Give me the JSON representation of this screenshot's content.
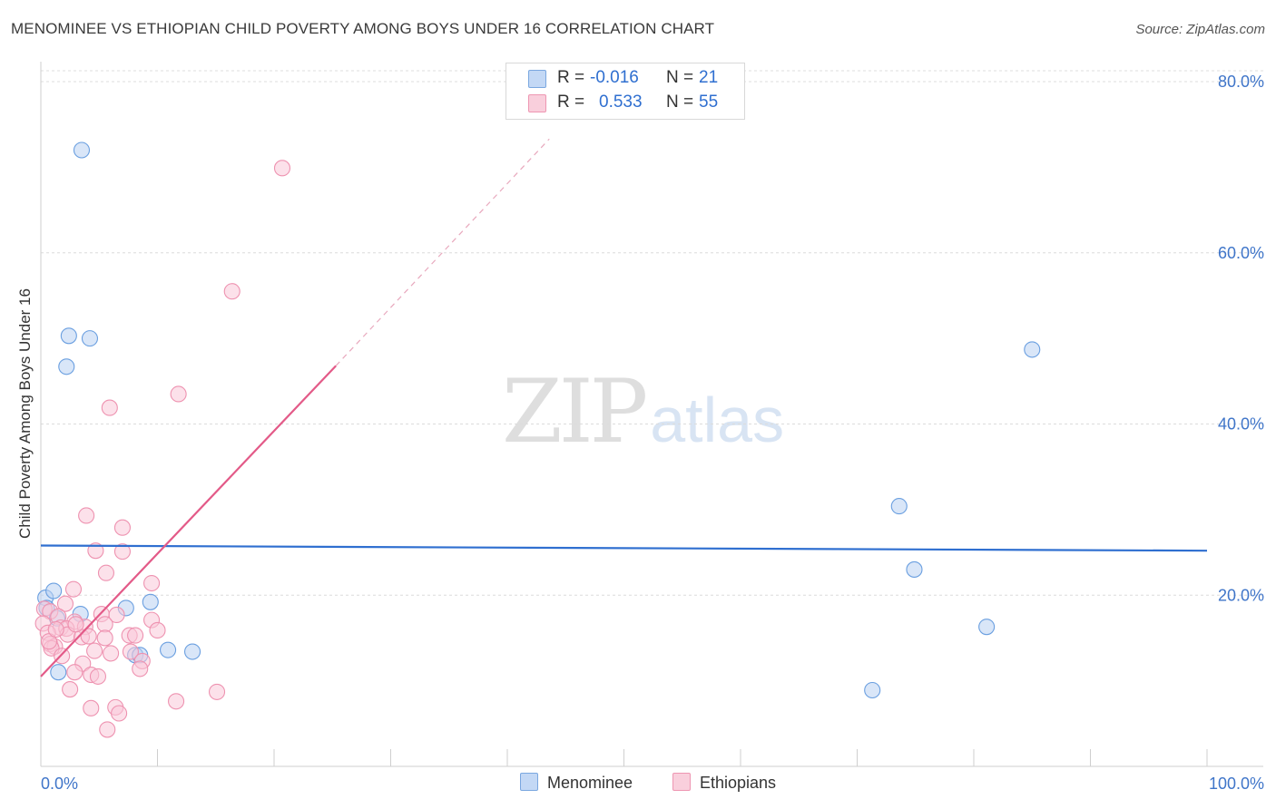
{
  "title": "MENOMINEE VS ETHIOPIAN CHILD POVERTY AMONG BOYS UNDER 16 CORRELATION CHART",
  "source": "Source: ZipAtlas.com",
  "watermark": {
    "zip": "ZIP",
    "atlas": "atlas"
  },
  "legend": {
    "rows": [
      {
        "r_label": "R =",
        "r_value": "-0.016",
        "n_label": "N =",
        "n_value": "21",
        "color": "#aac9f2",
        "border": "#7aa7e0"
      },
      {
        "r_label": "R =",
        "r_value": "0.533",
        "n_label": "N =",
        "n_value": "55",
        "color": "#f7c0d1",
        "border": "#ee96b2"
      }
    ]
  },
  "bottom_legend": {
    "menominee": "Menominee",
    "ethiopians": "Ethiopians"
  },
  "chart_data": {
    "type": "scatter",
    "title": "MENOMINEE VS ETHIOPIAN CHILD POVERTY AMONG BOYS UNDER 16 CORRELATION CHART",
    "xlabel": "",
    "ylabel": "Child Poverty Among Boys Under 16",
    "xlim": [
      0,
      100
    ],
    "ylim": [
      0,
      80
    ],
    "x_tick_labels": [
      "0.0%",
      "100.0%"
    ],
    "y_ticks": [
      20,
      40,
      60,
      80
    ],
    "y_tick_labels": [
      "20.0%",
      "40.0%",
      "60.0%",
      "80.0%"
    ],
    "grid": true,
    "series": [
      {
        "name": "Menominee",
        "color": "#6a9fe0",
        "fill": "#b9d2f3",
        "line_color": "#2f6fd0",
        "trend": {
          "x": [
            0,
            100
          ],
          "y": [
            25.8,
            25.2
          ],
          "dashed_extension": false
        },
        "points": [
          [
            3.5,
            72.0
          ],
          [
            2.4,
            50.3
          ],
          [
            4.2,
            50.0
          ],
          [
            2.2,
            46.7
          ],
          [
            85.0,
            48.7
          ],
          [
            73.6,
            30.4
          ],
          [
            74.9,
            23.0
          ],
          [
            81.1,
            16.3
          ],
          [
            71.3,
            8.9
          ],
          [
            0.4,
            19.7
          ],
          [
            0.5,
            18.5
          ],
          [
            1.1,
            20.5
          ],
          [
            1.4,
            17.3
          ],
          [
            3.4,
            17.8
          ],
          [
            7.3,
            18.5
          ],
          [
            9.4,
            19.2
          ],
          [
            8.1,
            13.0
          ],
          [
            8.5,
            13.0
          ],
          [
            10.9,
            13.6
          ],
          [
            13.0,
            13.4
          ],
          [
            1.5,
            11.0
          ]
        ]
      },
      {
        "name": "Ethiopians",
        "color": "#ee92b0",
        "fill": "#f9c8d8",
        "line_color": "#e35a88",
        "trend": {
          "x": [
            0,
            25.3
          ],
          "y": [
            10.5,
            46.8
          ],
          "dashed_to": [
            43.6,
            73.3
          ]
        },
        "points": [
          [
            20.7,
            69.9
          ],
          [
            16.4,
            55.5
          ],
          [
            11.8,
            43.5
          ],
          [
            5.9,
            41.9
          ],
          [
            3.9,
            29.3
          ],
          [
            7.0,
            27.9
          ],
          [
            4.7,
            25.2
          ],
          [
            7.0,
            25.1
          ],
          [
            5.6,
            22.6
          ],
          [
            9.5,
            21.4
          ],
          [
            2.8,
            20.7
          ],
          [
            2.1,
            19.0
          ],
          [
            0.3,
            18.4
          ],
          [
            0.8,
            18.1
          ],
          [
            5.2,
            17.8
          ],
          [
            6.5,
            17.7
          ],
          [
            1.5,
            17.5
          ],
          [
            2.9,
            16.9
          ],
          [
            9.5,
            17.1
          ],
          [
            0.2,
            16.7
          ],
          [
            1.7,
            16.2
          ],
          [
            2.2,
            16.1
          ],
          [
            3.8,
            16.3
          ],
          [
            0.6,
            15.6
          ],
          [
            2.3,
            15.4
          ],
          [
            3.5,
            15.1
          ],
          [
            4.1,
            15.2
          ],
          [
            5.5,
            16.6
          ],
          [
            7.6,
            15.3
          ],
          [
            10.0,
            15.9
          ],
          [
            5.5,
            15.0
          ],
          [
            8.1,
            15.3
          ],
          [
            0.8,
            14.3
          ],
          [
            1.2,
            14.0
          ],
          [
            0.9,
            13.8
          ],
          [
            1.8,
            12.9
          ],
          [
            4.6,
            13.5
          ],
          [
            6.0,
            13.2
          ],
          [
            7.7,
            13.4
          ],
          [
            8.7,
            12.3
          ],
          [
            3.6,
            12.0
          ],
          [
            2.9,
            11.0
          ],
          [
            8.5,
            11.4
          ],
          [
            4.3,
            10.7
          ],
          [
            4.9,
            10.5
          ],
          [
            2.5,
            9.0
          ],
          [
            15.1,
            8.7
          ],
          [
            11.6,
            7.6
          ],
          [
            4.3,
            6.8
          ],
          [
            6.4,
            6.9
          ],
          [
            6.7,
            6.2
          ],
          [
            5.7,
            4.3
          ],
          [
            0.7,
            14.6
          ],
          [
            1.3,
            16.0
          ],
          [
            3.0,
            16.6
          ]
        ]
      }
    ]
  }
}
